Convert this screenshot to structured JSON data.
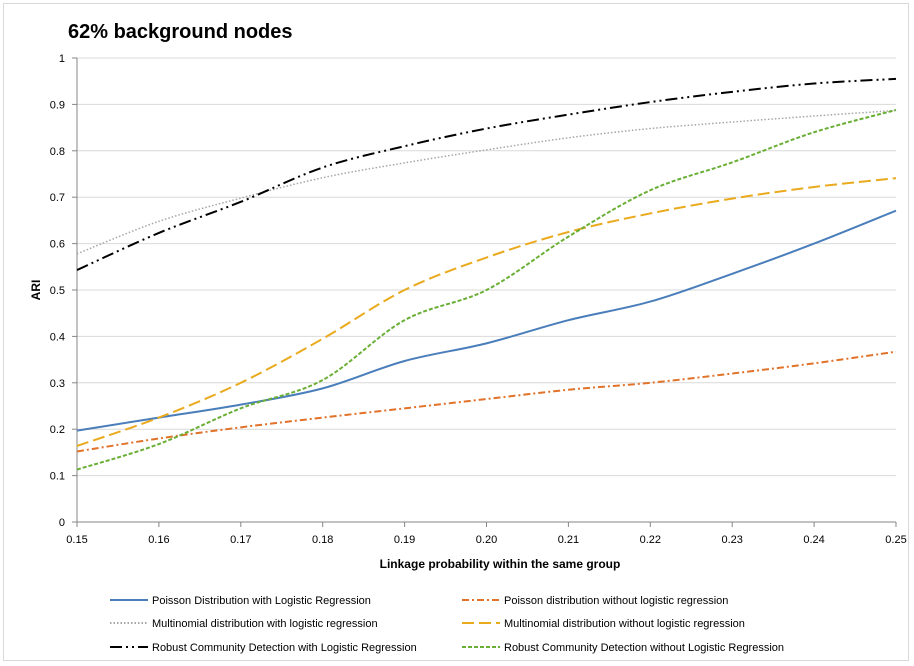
{
  "chart_data": {
    "type": "line",
    "title": "62% background nodes",
    "xlabel": "Linkage probability within the same group",
    "ylabel": "ARI",
    "xlim": [
      0.15,
      0.25
    ],
    "ylim": [
      0,
      1
    ],
    "xticks": [
      "0.15",
      "0.16",
      "0.17",
      "0.18",
      "0.19",
      "0.20",
      "0.21",
      "0.22",
      "0.23",
      "0.24",
      "0.25"
    ],
    "yticks": [
      "0",
      "0.1",
      "0.2",
      "0.3",
      "0.4",
      "0.5",
      "0.6",
      "0.7",
      "0.8",
      "0.9",
      "1"
    ],
    "grid": "horizontal",
    "legend_position": "bottom",
    "x": [
      0.15,
      0.16,
      0.17,
      0.18,
      0.19,
      0.2,
      0.21,
      0.22,
      0.23,
      0.24,
      0.25
    ],
    "series": [
      {
        "name": "Poisson Distribution with Logistic Regression",
        "color": "#4a7ebb",
        "dash": "solid",
        "values": [
          0.197,
          0.225,
          0.253,
          0.288,
          0.347,
          0.385,
          0.435,
          0.475,
          0.535,
          0.6,
          0.671
        ]
      },
      {
        "name": "Poisson distribution without logistic regression",
        "color": "#e0722a",
        "dash": "dashdot",
        "values": [
          0.152,
          0.18,
          0.204,
          0.225,
          0.245,
          0.265,
          0.285,
          0.3,
          0.32,
          0.342,
          0.367
        ]
      },
      {
        "name": "Multinomial distribution with logistic regression",
        "color": "#a6a6a6",
        "dash": "dotted",
        "values": [
          0.578,
          0.648,
          0.698,
          0.742,
          0.774,
          0.802,
          0.828,
          0.848,
          0.862,
          0.875,
          0.887
        ]
      },
      {
        "name": "Multinomial distribution without logistic regression",
        "color": "#eaaa1e",
        "dash": "longdash",
        "values": [
          0.164,
          0.225,
          0.3,
          0.395,
          0.5,
          0.57,
          0.625,
          0.665,
          0.697,
          0.722,
          0.741
        ]
      },
      {
        "name": "Robust Community Detection with Logistic Regression",
        "color": "#000000",
        "dash": "longdashdotdot",
        "values": [
          0.543,
          0.623,
          0.69,
          0.764,
          0.81,
          0.848,
          0.878,
          0.905,
          0.927,
          0.945,
          0.955
        ]
      },
      {
        "name": "Robust Community Detection without Logistic Regression",
        "color": "#6aaf35",
        "dash": "dashed",
        "values": [
          0.113,
          0.168,
          0.245,
          0.306,
          0.435,
          0.5,
          0.615,
          0.715,
          0.775,
          0.84,
          0.888
        ]
      }
    ]
  }
}
